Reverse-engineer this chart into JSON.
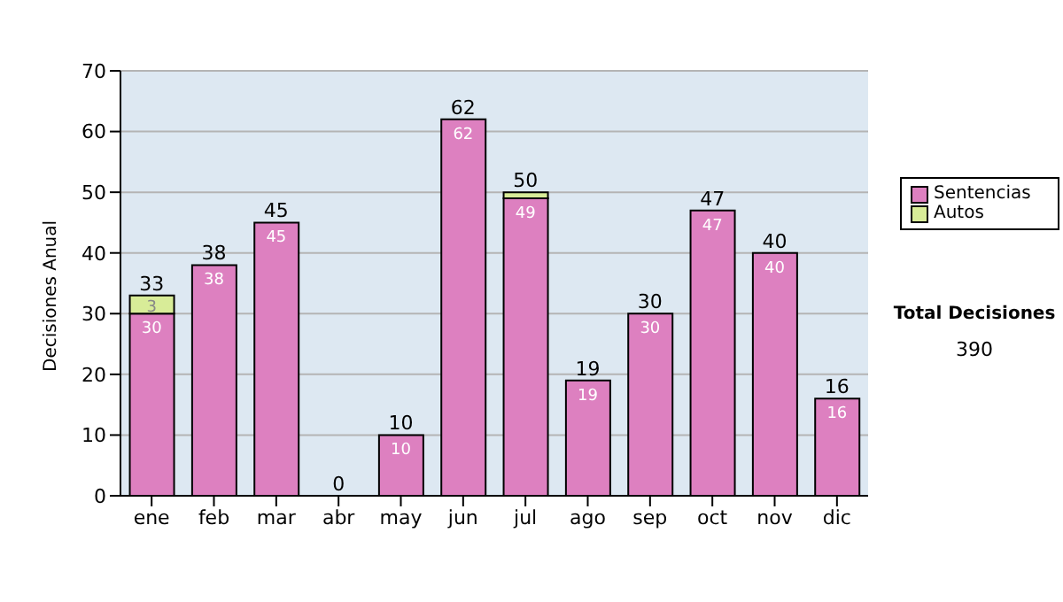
{
  "chart_data": {
    "type": "bar",
    "stacked": true,
    "ylabel": "Decisiones Anual",
    "categories": [
      "ene",
      "feb",
      "mar",
      "abr",
      "may",
      "jun",
      "jul",
      "ago",
      "sep",
      "oct",
      "nov",
      "dic"
    ],
    "series": [
      {
        "name": "Sentencias",
        "color": "#dd80c0",
        "values": [
          30,
          38,
          45,
          0,
          10,
          62,
          49,
          19,
          30,
          47,
          40,
          16
        ],
        "value_labels": [
          "30",
          "38",
          "45",
          null,
          "10",
          "62",
          "49",
          "19",
          "30",
          "47",
          "40",
          "16"
        ]
      },
      {
        "name": "Autos",
        "color": "#d8ec98",
        "values": [
          3,
          0,
          0,
          0,
          0,
          0,
          1,
          0,
          0,
          0,
          0,
          0
        ],
        "value_labels": [
          "3",
          null,
          null,
          null,
          null,
          null,
          null,
          null,
          null,
          null,
          null,
          null
        ]
      }
    ],
    "totals": [
      "33",
      "38",
      "45",
      "0",
      "10",
      "62",
      "50",
      "19",
      "30",
      "47",
      "40",
      "16"
    ],
    "ylim": [
      0,
      70
    ],
    "yticks": [
      0,
      10,
      20,
      30,
      40,
      50,
      60,
      70
    ],
    "grid": "y",
    "legend": "right",
    "annotations": [
      "Total Decisiones",
      "390"
    ]
  }
}
